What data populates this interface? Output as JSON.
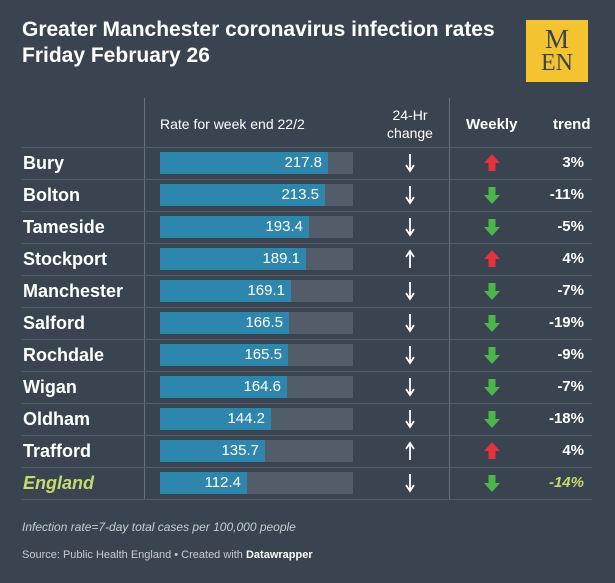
{
  "header": {
    "title_line1": "Greater Manchester coronavirus infection rates",
    "title_line2": "Friday February 26"
  },
  "logo": {
    "line1": "M",
    "line2": "EN"
  },
  "columns": {
    "rate": "Rate for week end 22/2",
    "change_line1": "24-Hr",
    "change_line2": "change",
    "weekly": "Weekly",
    "trend": "trend"
  },
  "colors": {
    "background": "#3a4350",
    "bar": "#2f86ad",
    "track": "#535c69",
    "up": "#e8303e",
    "down": "#4cb648",
    "highlight": "#c8d96f"
  },
  "chart_data": {
    "type": "table",
    "rate_max": 250,
    "rows": [
      {
        "name": "Bury",
        "rate": 217.8,
        "rate_label": "217.8",
        "change": "down",
        "weekly": "up",
        "trend": "3%"
      },
      {
        "name": "Bolton",
        "rate": 213.5,
        "rate_label": "213.5",
        "change": "down",
        "weekly": "down",
        "trend": "-11%"
      },
      {
        "name": "Tameside",
        "rate": 193.4,
        "rate_label": "193.4",
        "change": "down",
        "weekly": "down",
        "trend": "-5%"
      },
      {
        "name": "Stockport",
        "rate": 189.1,
        "rate_label": "189.1",
        "change": "up",
        "weekly": "up",
        "trend": "4%"
      },
      {
        "name": "Manchester",
        "rate": 169.1,
        "rate_label": "169.1",
        "change": "down",
        "weekly": "down",
        "trend": "-7%"
      },
      {
        "name": "Salford",
        "rate": 166.5,
        "rate_label": "166.5",
        "change": "down",
        "weekly": "down",
        "trend": "-19%"
      },
      {
        "name": "Rochdale",
        "rate": 165.5,
        "rate_label": "165.5",
        "change": "down",
        "weekly": "down",
        "trend": "-9%"
      },
      {
        "name": "Wigan",
        "rate": 164.6,
        "rate_label": "164.6",
        "change": "down",
        "weekly": "down",
        "trend": "-7%"
      },
      {
        "name": "Oldham",
        "rate": 144.2,
        "rate_label": "144.2",
        "change": "down",
        "weekly": "down",
        "trend": "-18%"
      },
      {
        "name": "Trafford",
        "rate": 135.7,
        "rate_label": "135.7",
        "change": "up",
        "weekly": "up",
        "trend": "4%"
      },
      {
        "name": "England",
        "rate": 112.4,
        "rate_label": "112.4",
        "change": "down",
        "weekly": "down",
        "trend": "-14%",
        "highlight": true
      }
    ]
  },
  "footer": {
    "note": "Infection rate=7-day total cases per 100,000 people",
    "source_prefix": "Source: Public Health England • Created with ",
    "source_brand": "Datawrapper"
  }
}
